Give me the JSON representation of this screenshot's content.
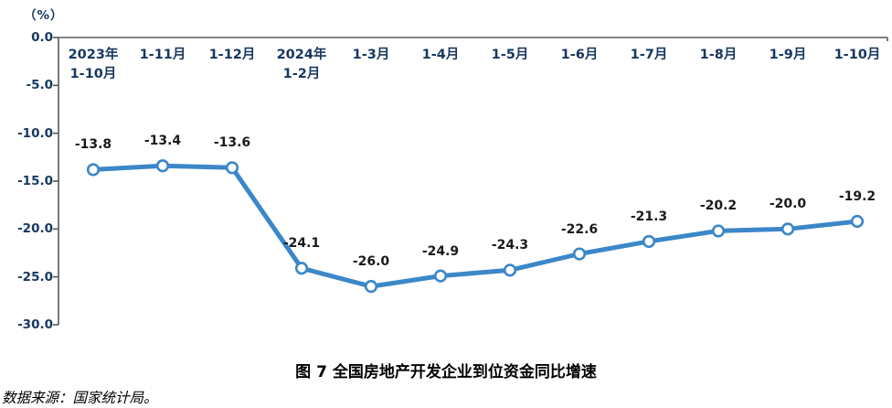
{
  "unit_label": "（%）",
  "title": "图 7 全国房地产开发企业到位资金同比增速",
  "source": "数据来源：国家统计局。",
  "chart_data": {
    "type": "line",
    "categories": [
      "2023年\n1-10月",
      "1-11月",
      "1-12月",
      "2024年\n1-2月",
      "1-3月",
      "1-4月",
      "1-5月",
      "1-6月",
      "1-7月",
      "1-8月",
      "1-9月",
      "1-10月"
    ],
    "values": [
      -13.8,
      -13.4,
      -13.6,
      -24.1,
      -26.0,
      -24.9,
      -24.3,
      -22.6,
      -21.3,
      -20.2,
      -20.0,
      -19.2
    ],
    "data_labels": [
      "-13.8",
      "-13.4",
      "-13.6",
      "-24.1",
      "-26.0",
      "-24.9",
      "-24.3",
      "-22.6",
      "-21.3",
      "-20.2",
      "-20.0",
      "-19.2"
    ],
    "title": "图 7 全国房地产开发企业到位资金同比增速",
    "xlabel": "",
    "ylabel": "（%）",
    "ylim": [
      -30,
      0
    ],
    "ytick_step": 5,
    "ytick_labels": [
      "0.0",
      "-5.0",
      "-10.0",
      "-15.0",
      "-20.0",
      "-25.0",
      "-30.0"
    ],
    "grid": false,
    "legend": "none",
    "marker": "open-circle",
    "x_axis_position": "top",
    "category_labels_inside_top": true
  },
  "colors": {
    "line": "#3B87C8",
    "marker_fill": "#FFFFFF",
    "axis": "#595959",
    "tick_label": "#17375E",
    "data_label": "#1a1a1a",
    "background": "#FFFFFF"
  }
}
